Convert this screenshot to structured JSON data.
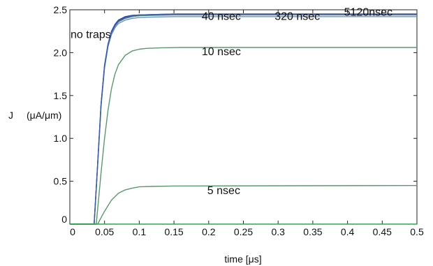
{
  "chart_data": {
    "type": "line",
    "title": "",
    "xlabel": "time [μs]",
    "ylabel_symbol": "J",
    "ylabel_unit": "(μA/μm)",
    "xlim": [
      0,
      0.5
    ],
    "ylim": [
      0,
      2.5
    ],
    "x_ticks": [
      0,
      0.05,
      0.1,
      0.15,
      0.2,
      0.25,
      0.3,
      0.35,
      0.4,
      0.45,
      0.5
    ],
    "x_tick_labels": [
      "0",
      "0.05",
      "0.1",
      "0.15",
      "0.2",
      "0.25",
      "0.3",
      "0.35",
      "0.4",
      "0.45",
      "0.5"
    ],
    "y_ticks": [
      0,
      0.5,
      1.0,
      1.5,
      2.0,
      2.5
    ],
    "y_tick_labels": [
      "0",
      "0.5",
      "1.0",
      "1.5",
      "2.0",
      "2.5"
    ],
    "grid": false,
    "legend": "none",
    "series": [
      {
        "name": "no traps",
        "color": "#2b3fb3",
        "x": [
          0,
          0.035,
          0.04,
          0.045,
          0.05,
          0.055,
          0.06,
          0.065,
          0.07,
          0.08,
          0.09,
          0.1,
          0.12,
          0.15,
          0.5
        ],
        "y": [
          0,
          0,
          0.7,
          1.4,
          1.85,
          2.1,
          2.25,
          2.33,
          2.38,
          2.42,
          2.435,
          2.44,
          2.445,
          2.45,
          2.45
        ]
      },
      {
        "name": "40 nsec",
        "color": "#6f8fc0",
        "x": [
          0,
          0.035,
          0.04,
          0.045,
          0.05,
          0.055,
          0.06,
          0.065,
          0.07,
          0.08,
          0.09,
          0.1,
          0.12,
          0.15,
          0.5
        ],
        "y": [
          0,
          0,
          0.68,
          1.37,
          1.82,
          2.07,
          2.21,
          2.29,
          2.34,
          2.38,
          2.4,
          2.41,
          2.415,
          2.42,
          2.42
        ]
      },
      {
        "name": "320 nsec",
        "color": "#4a8c78",
        "x": [
          0,
          0.035,
          0.04,
          0.045,
          0.05,
          0.055,
          0.06,
          0.065,
          0.07,
          0.08,
          0.09,
          0.1,
          0.12,
          0.15,
          0.5
        ],
        "y": [
          0,
          0,
          0.69,
          1.39,
          1.84,
          2.09,
          2.23,
          2.31,
          2.36,
          2.4,
          2.42,
          2.43,
          2.435,
          2.44,
          2.44
        ]
      },
      {
        "name": "5120nsec",
        "color": "#3a5aa8",
        "x": [
          0,
          0.035,
          0.04,
          0.045,
          0.05,
          0.055,
          0.06,
          0.065,
          0.07,
          0.08,
          0.09,
          0.1,
          0.12,
          0.15,
          0.5
        ],
        "y": [
          0,
          0,
          0.7,
          1.4,
          1.85,
          2.1,
          2.24,
          2.32,
          2.37,
          2.41,
          2.43,
          2.44,
          2.445,
          2.45,
          2.45
        ]
      },
      {
        "name": "10 nsec",
        "color": "#5d9670",
        "x": [
          0,
          0.038,
          0.045,
          0.05,
          0.055,
          0.06,
          0.065,
          0.07,
          0.08,
          0.09,
          0.1,
          0.11,
          0.13,
          0.16,
          0.5
        ],
        "y": [
          0,
          0,
          0.6,
          1.0,
          1.33,
          1.58,
          1.75,
          1.86,
          1.97,
          2.02,
          2.04,
          2.05,
          2.055,
          2.06,
          2.06
        ]
      },
      {
        "name": "5 nsec",
        "color": "#5d9670",
        "x": [
          0,
          0.04,
          0.05,
          0.06,
          0.07,
          0.08,
          0.09,
          0.1,
          0.12,
          0.15,
          0.5
        ],
        "y": [
          0,
          0,
          0.15,
          0.28,
          0.36,
          0.4,
          0.42,
          0.435,
          0.44,
          0.445,
          0.45
        ]
      },
      {
        "name": "",
        "color": "#2aa84a",
        "x": [
          0,
          0.5
        ],
        "y": [
          0,
          0
        ]
      }
    ],
    "annotations": [
      {
        "text": "no traps",
        "x": 0.001,
        "y": 2.17
      },
      {
        "text": "40 nsec",
        "x": 0.19,
        "y": 2.38
      },
      {
        "text": "320 nsec",
        "x": 0.295,
        "y": 2.38
      },
      {
        "text": "5120nsec",
        "x": 0.395,
        "y": 2.43
      },
      {
        "text": "10 nsec",
        "x": 0.19,
        "y": 1.97
      },
      {
        "text": "5 nsec",
        "x": 0.198,
        "y": 0.35
      }
    ]
  }
}
